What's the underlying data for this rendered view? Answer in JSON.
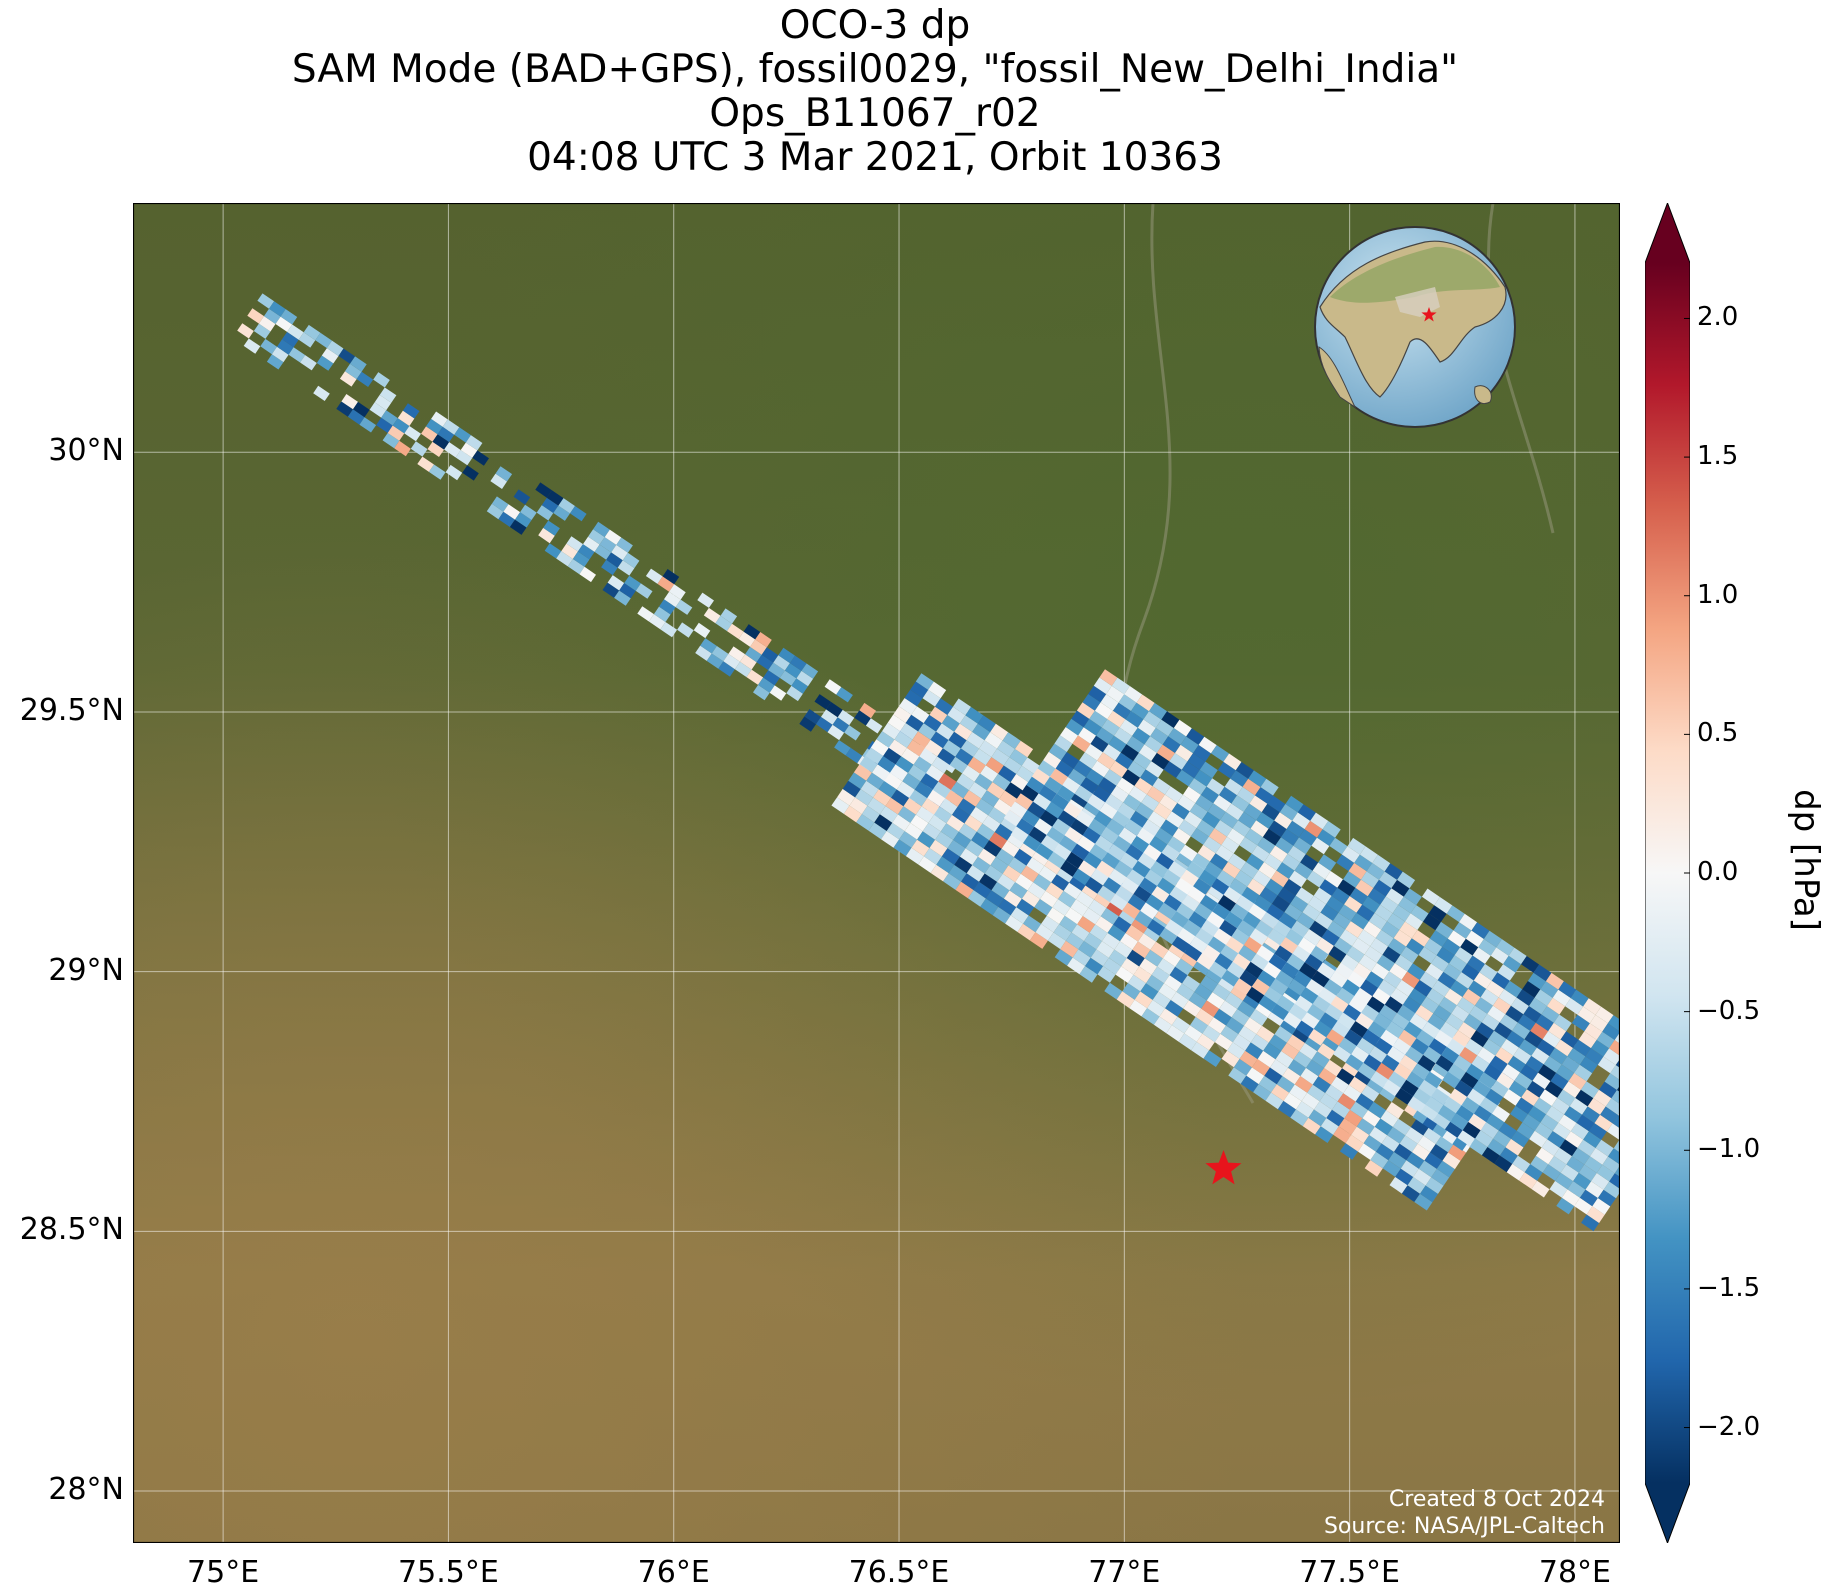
{
  "title": {
    "line1": "OCO-3 dp",
    "line2": "SAM Mode (BAD+GPS), fossil0029, \"fossil_New_Delhi_India\"",
    "line3": "Ops_B11067_r02",
    "line4": "04:08 UTC 3 Mar 2021, Orbit 10363"
  },
  "map": {
    "lon_range": [
      74.8,
      78.1
    ],
    "lat_range": [
      27.9,
      30.48
    ],
    "lon_ticks": [
      {
        "value": 75.0,
        "label": "75°E"
      },
      {
        "value": 75.5,
        "label": "75.5°E"
      },
      {
        "value": 76.0,
        "label": "76°E"
      },
      {
        "value": 76.5,
        "label": "76.5°E"
      },
      {
        "value": 77.0,
        "label": "77°E"
      },
      {
        "value": 77.5,
        "label": "77.5°E"
      },
      {
        "value": 78.0,
        "label": "78°E"
      }
    ],
    "lat_ticks": [
      {
        "value": 30.0,
        "label": "30°N"
      },
      {
        "value": 29.5,
        "label": "29.5°N"
      },
      {
        "value": 29.0,
        "label": "29°N"
      },
      {
        "value": 28.5,
        "label": "28.5°N"
      },
      {
        "value": 28.0,
        "label": "28°N"
      }
    ],
    "target_marker": {
      "lon": 77.22,
      "lat": 28.62,
      "color": "#e8141c"
    },
    "swath_colorbar_variable": "dp",
    "background": "satellite imagery",
    "credits": {
      "created": "Created 8 Oct 2024",
      "source": "Source: NASA/JPL-Caltech"
    },
    "inset_globe": {
      "description_icon": "globe-icon",
      "marker_color": "#e8141c"
    }
  },
  "colorbar": {
    "label": "dp [hPa]",
    "range": [
      -2.2,
      2.2
    ],
    "extend": "both",
    "colormap": "RdBu_r",
    "ticks": [
      {
        "value": 2.0,
        "label": "2.0"
      },
      {
        "value": 1.5,
        "label": "1.5"
      },
      {
        "value": 1.0,
        "label": "1.0"
      },
      {
        "value": 0.5,
        "label": "0.5"
      },
      {
        "value": 0.0,
        "label": "0.0"
      },
      {
        "value": -0.5,
        "label": "−0.5"
      },
      {
        "value": -1.0,
        "label": "−1.0"
      },
      {
        "value": -1.5,
        "label": "−1.5"
      },
      {
        "value": -2.0,
        "label": "−2.0"
      }
    ]
  }
}
